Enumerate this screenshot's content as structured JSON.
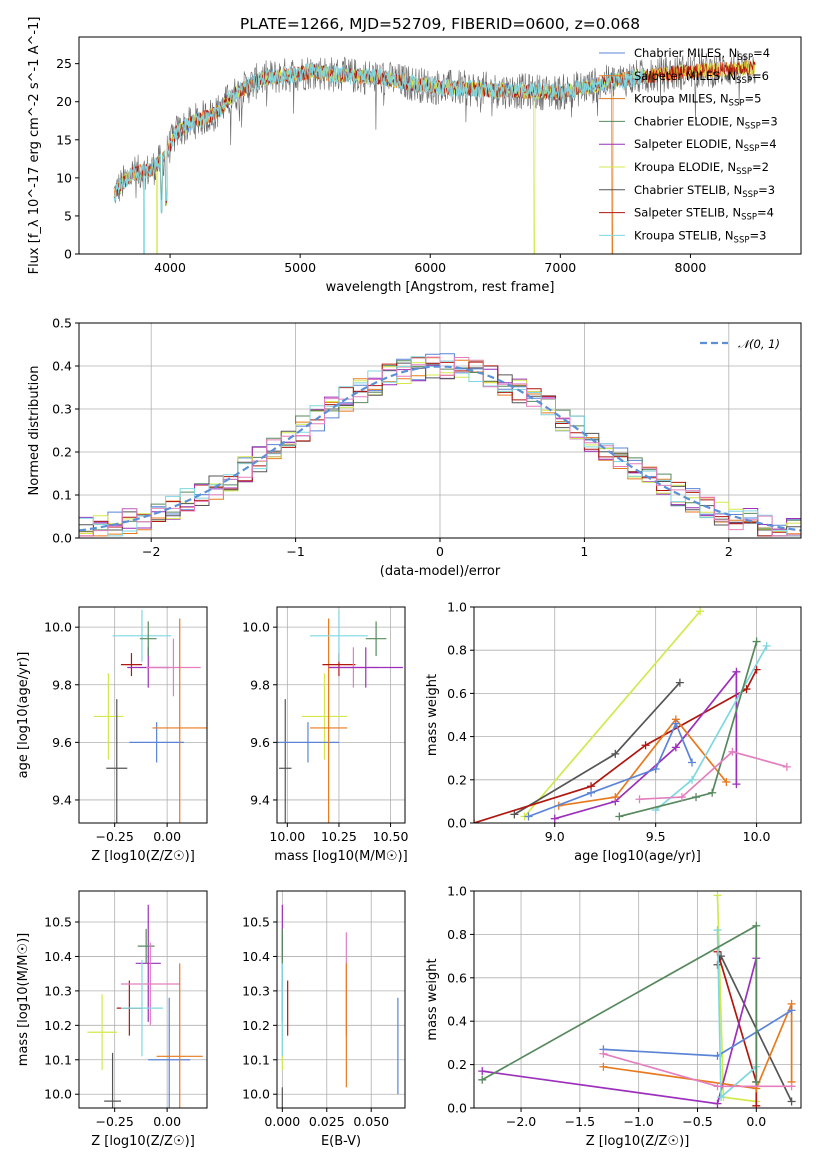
{
  "page": {
    "title": "PLATE=1266, MJD=52709, FIBERID=0600, z=0.068"
  },
  "colors": {
    "Chabrier MILES": "#5b84d6",
    "Salpeter MILES": "#e87a1e",
    "Kroupa MILES": "#d87a1a",
    "Chabrier ELODIE": "#57895e",
    "Salpeter ELODIE": "#9c2fbb",
    "Kroupa ELODIE": "#d3e84d",
    "Chabrier STELIB": "#555555",
    "Salpeter STELIB": "#b0170f",
    "Kroupa STELIB": "#7fd7e0",
    "pink": "#e37fbf",
    "normal": "#5b8fd6"
  },
  "chart_data": [
    {
      "id": "spectrum",
      "type": "line",
      "xlabel": "wavelength [Angstrom, rest frame]",
      "ylabel": "Flux [f_λ 10^-17 erg cm^-2 s^-1 A^-1]",
      "xlim": [
        3300,
        8850
      ],
      "ylim": [
        0,
        28.5
      ],
      "xticks": [
        4000,
        5000,
        6000,
        7000,
        8000
      ],
      "yticks": [
        0,
        5,
        10,
        15,
        20,
        25
      ],
      "legend_position": "top-right",
      "legend": [
        {
          "label": "Chabrier MILES, N",
          "sub": "SSP",
          "tail": "=4",
          "color": "#5b84d6"
        },
        {
          "label": "Salpeter MILES, N",
          "sub": "SSP",
          "tail": "=6",
          "color": "#e87a1e"
        },
        {
          "label": "Kroupa MILES, N",
          "sub": "SSP",
          "tail": "=5",
          "color": "#d87a1a"
        },
        {
          "label": "Chabrier ELODIE, N",
          "sub": "SSP",
          "tail": "=3",
          "color": "#57895e"
        },
        {
          "label": "Salpeter ELODIE, N",
          "sub": "SSP",
          "tail": "=4",
          "color": "#9c2fbb"
        },
        {
          "label": "Kroupa ELODIE, N",
          "sub": "SSP",
          "tail": "=2",
          "color": "#d3e84d"
        },
        {
          "label": "Chabrier STELIB, N",
          "sub": "SSP",
          "tail": "=3",
          "color": "#555555"
        },
        {
          "label": "Salpeter STELIB, N",
          "sub": "SSP",
          "tail": "=4",
          "color": "#b0170f"
        },
        {
          "label": "Kroupa STELIB, N",
          "sub": "SSP",
          "tail": "=3",
          "color": "#7fd7e0"
        }
      ],
      "continuum": {
        "x": [
          3570,
          3700,
          3850,
          3950,
          4050,
          4200,
          4350,
          4500,
          4700,
          4900,
          5100,
          5300,
          5600,
          6000,
          6500,
          7000,
          7500,
          8000,
          8500
        ],
        "y": [
          8,
          10.5,
          11,
          12.5,
          16,
          17.5,
          18.5,
          21,
          23,
          23.5,
          24,
          23.5,
          23.2,
          22,
          21.5,
          21.2,
          23,
          24,
          24.5
        ]
      }
    },
    {
      "id": "residuals",
      "type": "line",
      "xlabel": "(data-model)/error",
      "ylabel": "Normed distribution",
      "xlim": [
        -2.5,
        2.5
      ],
      "ylim": [
        0,
        0.5
      ],
      "xticks": [
        -2,
        -1,
        0,
        1,
        2
      ],
      "xticklabels": [
        "−2",
        "−1",
        "0",
        "1",
        "2"
      ],
      "yticks": [
        0.0,
        0.1,
        0.2,
        0.3,
        0.4,
        0.5
      ],
      "yticklabels": [
        "0.0",
        "0.1",
        "0.2",
        "0.3",
        "0.4",
        "0.5"
      ],
      "normal_label": "𝒩(0, 1)",
      "legend_position": "top-right"
    },
    {
      "id": "age_vs_Z",
      "type": "scatter",
      "xlabel": "Z [log10(Z/Z☉)]",
      "ylabel": "age  [log10(age/yr)]",
      "xlim": [
        -0.42,
        0.19
      ],
      "ylim": [
        9.32,
        10.07
      ],
      "xticks": [
        -0.25,
        0.0
      ],
      "xticklabels": [
        "−0.25",
        "0.00"
      ],
      "yticks": [
        9.4,
        9.6,
        9.8,
        10.0
      ],
      "yticklabels": [
        "9.4",
        "9.6",
        "9.8",
        "10.0"
      ],
      "points": [
        {
          "x": -0.28,
          "y": 9.69,
          "xerr": 0.07,
          "yerr": 0.15,
          "color": "#d3e84d"
        },
        {
          "x": -0.24,
          "y": 9.51,
          "xerr": 0.05,
          "yerr": 0.24,
          "color": "#555555"
        },
        {
          "x": -0.17,
          "y": 9.87,
          "xerr": 0.05,
          "yerr": 0.04,
          "color": "#b0170f"
        },
        {
          "x": -0.09,
          "y": 9.86,
          "xerr": 0.1,
          "yerr": 0.07,
          "color": "#9c2fbb"
        },
        {
          "x": -0.12,
          "y": 9.97,
          "xerr": 0.14,
          "yerr": 0.09,
          "color": "#7fd7e0"
        },
        {
          "x": -0.09,
          "y": 9.96,
          "xerr": 0.04,
          "yerr": 0.06,
          "color": "#57895e"
        },
        {
          "x": 0.03,
          "y": 9.86,
          "xerr": 0.13,
          "yerr": 0.1,
          "color": "#e37fbf"
        },
        {
          "x": -0.05,
          "y": 9.6,
          "xerr": 0.13,
          "yerr": 0.07,
          "color": "#5b84d6"
        },
        {
          "x": 0.06,
          "y": 9.65,
          "xerr": 0.13,
          "yerr": 0.38,
          "color": "#e87a1e"
        }
      ]
    },
    {
      "id": "age_vs_mass",
      "type": "scatter",
      "xlabel": "mass [log10(M/M☉)]",
      "ylabel": "",
      "xlim": [
        9.95,
        10.57
      ],
      "ylim": [
        9.32,
        10.07
      ],
      "xticks": [
        10.0,
        10.25,
        10.5
      ],
      "xticklabels": [
        "10.00",
        "10.25",
        "10.50"
      ],
      "yticks": [
        9.4,
        9.6,
        9.8,
        10.0
      ],
      "yticklabels": [
        "9.4",
        "9.6",
        "9.8",
        "10.0"
      ],
      "points": [
        {
          "x": 9.99,
          "y": 9.51,
          "xerr": 0.03,
          "yerr": 0.24,
          "color": "#555555"
        },
        {
          "x": 10.18,
          "y": 9.69,
          "xerr": 0.11,
          "yerr": 0.15,
          "color": "#d3e84d"
        },
        {
          "x": 10.1,
          "y": 9.6,
          "xerr": 0.15,
          "yerr": 0.07,
          "color": "#5b84d6"
        },
        {
          "x": 10.2,
          "y": 9.65,
          "xerr": 0.09,
          "yerr": 0.38,
          "color": "#e87a1e"
        },
        {
          "x": 10.25,
          "y": 9.87,
          "xerr": 0.08,
          "yerr": 0.04,
          "color": "#b0170f"
        },
        {
          "x": 10.32,
          "y": 9.86,
          "xerr": 0.12,
          "yerr": 0.07,
          "color": "#e37fbf"
        },
        {
          "x": 10.38,
          "y": 9.86,
          "xerr": 0.18,
          "yerr": 0.07,
          "color": "#9c2fbb"
        },
        {
          "x": 10.25,
          "y": 9.97,
          "xerr": 0.14,
          "yerr": 0.09,
          "color": "#7fd7e0"
        },
        {
          "x": 10.43,
          "y": 9.96,
          "xerr": 0.05,
          "yerr": 0.06,
          "color": "#57895e"
        }
      ]
    },
    {
      "id": "weight_vs_age",
      "type": "line",
      "xlabel": "age  [log10(age/yr)]",
      "ylabel": "mass weight",
      "xlim": [
        8.6,
        10.22
      ],
      "ylim": [
        0,
        1
      ],
      "xticks": [
        9.0,
        9.5,
        10.0
      ],
      "xticklabels": [
        "9.0",
        "9.5",
        "10.0"
      ],
      "yticks": [
        0.0,
        0.2,
        0.4,
        0.6,
        0.8,
        1.0
      ],
      "yticklabels": [
        "0.0",
        "0.2",
        "0.4",
        "0.6",
        "0.8",
        "1.0"
      ],
      "series": [
        {
          "color": "#d3e84d",
          "x": [
            8.85,
            9.72
          ],
          "y": [
            0.03,
            0.98
          ]
        },
        {
          "color": "#555555",
          "x": [
            8.8,
            9.3,
            9.62
          ],
          "y": [
            0.04,
            0.32,
            0.65
          ]
        },
        {
          "color": "#b0170f",
          "x": [
            8.6,
            9.18,
            9.45,
            9.95,
            10.0
          ],
          "y": [
            0.0,
            0.17,
            0.36,
            0.62,
            0.71
          ]
        },
        {
          "color": "#9c2fbb",
          "x": [
            9.0,
            9.3,
            9.6,
            9.9,
            9.9
          ],
          "y": [
            0.02,
            0.1,
            0.35,
            0.7,
            0.18
          ]
        },
        {
          "color": "#e87a1e",
          "x": [
            9.02,
            9.3,
            9.6,
            9.85
          ],
          "y": [
            0.08,
            0.12,
            0.48,
            0.19
          ]
        },
        {
          "color": "#5b84d6",
          "x": [
            8.87,
            9.18,
            9.5,
            9.6,
            9.68
          ],
          "y": [
            0.03,
            0.14,
            0.25,
            0.46,
            0.28
          ]
        },
        {
          "color": "#7fd7e0",
          "x": [
            9.5,
            9.68,
            10.05
          ],
          "y": [
            0.06,
            0.2,
            0.82
          ]
        },
        {
          "color": "#57895e",
          "x": [
            9.32,
            9.7,
            9.78,
            10.0
          ],
          "y": [
            0.03,
            0.12,
            0.14,
            0.84
          ]
        },
        {
          "color": "#e37fbf",
          "x": [
            9.42,
            9.63,
            9.88,
            10.15
          ],
          "y": [
            0.11,
            0.12,
            0.33,
            0.26
          ]
        }
      ]
    },
    {
      "id": "mass_vs_Z",
      "type": "scatter",
      "xlabel": "Z [log10(Z/Z☉)]",
      "ylabel": "mass [log10(M/M☉)]",
      "xlim": [
        -0.42,
        0.19
      ],
      "ylim": [
        9.96,
        10.59
      ],
      "xticks": [
        -0.25,
        0.0
      ],
      "xticklabels": [
        "−0.25",
        "0.00"
      ],
      "yticks": [
        10.0,
        10.1,
        10.2,
        10.3,
        10.4,
        10.5
      ],
      "yticklabels": [
        "10.0",
        "10.1",
        "10.2",
        "10.3",
        "10.4",
        "10.5"
      ],
      "points": [
        {
          "x": -0.31,
          "y": 10.18,
          "xerr": 0.07,
          "yerr": 0.11,
          "color": "#d3e84d"
        },
        {
          "x": -0.26,
          "y": 9.98,
          "xerr": 0.04,
          "yerr": 0.14,
          "color": "#555555"
        },
        {
          "x": -0.18,
          "y": 10.25,
          "xerr": 0.06,
          "yerr": 0.08,
          "color": "#b0170f"
        },
        {
          "x": -0.09,
          "y": 10.38,
          "xerr": 0.06,
          "yerr": 0.17,
          "color": "#9c2fbb"
        },
        {
          "x": -0.1,
          "y": 10.43,
          "xerr": 0.04,
          "yerr": 0.05,
          "color": "#57895e"
        },
        {
          "x": -0.08,
          "y": 10.32,
          "xerr": 0.14,
          "yerr": 0.12,
          "color": "#e37fbf"
        },
        {
          "x": -0.12,
          "y": 10.25,
          "xerr": 0.1,
          "yerr": 0.14,
          "color": "#7fd7e0"
        },
        {
          "x": 0.01,
          "y": 10.1,
          "xerr": 0.1,
          "yerr": 0.18,
          "color": "#5b84d6"
        },
        {
          "x": 0.06,
          "y": 10.11,
          "xerr": 0.11,
          "yerr": 0.27,
          "color": "#e87a1e"
        }
      ]
    },
    {
      "id": "mass_vs_ebv",
      "type": "scatter",
      "xlabel": "E(B-V)",
      "ylabel": "",
      "xlim": [
        -0.003,
        0.069
      ],
      "ylim": [
        9.96,
        10.59
      ],
      "xticks": [
        0.0,
        0.025,
        0.05
      ],
      "xticklabels": [
        "0.000",
        "0.025",
        "0.050"
      ],
      "yticks": [
        10.0,
        10.1,
        10.2,
        10.3,
        10.4,
        10.5
      ],
      "yticklabels": [
        "10.0",
        "10.1",
        "10.2",
        "10.3",
        "10.4",
        "10.5"
      ],
      "points": [
        {
          "x": 0.0,
          "y": 9.98,
          "xerr": 0,
          "yerr": 0.04,
          "color": "#555555"
        },
        {
          "x": 0.0,
          "y": 10.18,
          "xerr": 0,
          "yerr": 0.11,
          "color": "#d3e84d"
        },
        {
          "x": 0.0,
          "y": 10.38,
          "xerr": 0,
          "yerr": 0.17,
          "color": "#9c2fbb"
        },
        {
          "x": 0.0,
          "y": 10.25,
          "xerr": 0,
          "yerr": 0.14,
          "color": "#7fd7e0"
        },
        {
          "x": 0.0,
          "y": 10.43,
          "xerr": 0,
          "yerr": 0.05,
          "color": "#57895e"
        },
        {
          "x": 0.003,
          "y": 10.25,
          "xerr": 0,
          "yerr": 0.08,
          "color": "#b0170f"
        },
        {
          "x": 0.036,
          "y": 10.32,
          "xerr": 0,
          "yerr": 0.15,
          "color": "#e37fbf"
        },
        {
          "x": 0.036,
          "y": 10.2,
          "xerr": 0,
          "yerr": 0.18,
          "color": "#e87a1e"
        },
        {
          "x": 0.065,
          "y": 10.14,
          "xerr": 0,
          "yerr": 0.14,
          "color": "#5b84d6"
        }
      ]
    },
    {
      "id": "weight_vs_Z",
      "type": "line",
      "xlabel": "Z [log10(Z/Z☉)]",
      "ylabel": "mass weight",
      "xlim": [
        -2.4,
        0.38
      ],
      "ylim": [
        0,
        1
      ],
      "xticks": [
        -2.0,
        -1.5,
        -1.0,
        -0.5,
        0.0
      ],
      "xticklabels": [
        "−2.0",
        "−1.5",
        "−1.0",
        "−0.5",
        "0.0"
      ],
      "yticks": [
        0.0,
        0.2,
        0.4,
        0.6,
        0.8,
        1.0
      ],
      "yticklabels": [
        "0.0",
        "0.2",
        "0.4",
        "0.6",
        "0.8",
        "1.0"
      ],
      "series": [
        {
          "color": "#d3e84d",
          "x": [
            -0.33,
            -0.28,
            0.0
          ],
          "y": [
            0.98,
            0.05,
            0.03
          ]
        },
        {
          "color": "#555555",
          "x": [
            -0.33,
            -0.3,
            0.3
          ],
          "y": [
            0.66,
            0.7,
            0.03
          ]
        },
        {
          "color": "#b0170f",
          "x": [
            -0.33,
            0.0,
            0.0
          ],
          "y": [
            0.72,
            0.12,
            0.01
          ]
        },
        {
          "color": "#9c2fbb",
          "x": [
            -2.33,
            -0.33,
            0.0,
            0.0
          ],
          "y": [
            0.17,
            0.02,
            0.69,
            0.1
          ]
        },
        {
          "color": "#e87a1e",
          "x": [
            -1.3,
            0.0,
            0.3,
            0.3
          ],
          "y": [
            0.19,
            0.09,
            0.48,
            0.12
          ]
        },
        {
          "color": "#5b84d6",
          "x": [
            -1.3,
            -0.33,
            0.3
          ],
          "y": [
            0.27,
            0.24,
            0.45
          ]
        },
        {
          "color": "#7fd7e0",
          "x": [
            -0.33,
            -0.3,
            0.0
          ],
          "y": [
            0.82,
            0.05,
            0.19
          ]
        },
        {
          "color": "#57895e",
          "x": [
            -2.33,
            0.0,
            0.0
          ],
          "y": [
            0.13,
            0.84,
            0.12
          ]
        },
        {
          "color": "#e37fbf",
          "x": [
            -1.3,
            -0.33,
            0.3
          ],
          "y": [
            0.25,
            0.1,
            0.1
          ]
        }
      ]
    }
  ]
}
